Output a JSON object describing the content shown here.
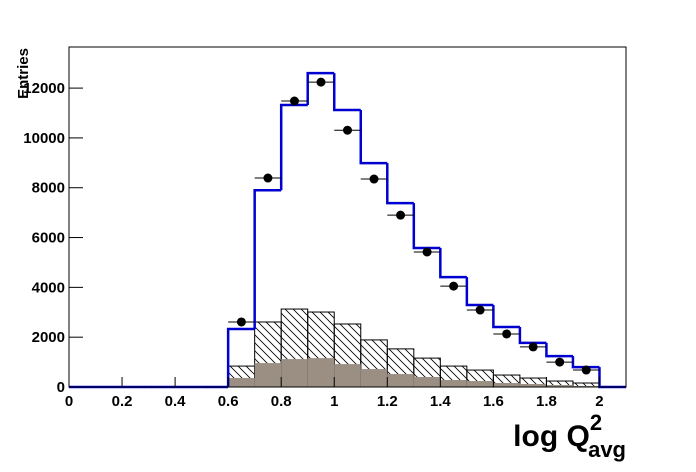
{
  "chart_data": {
    "type": "histogram",
    "x_label": {
      "main": "log Q",
      "sup": "2",
      "sub": "avg"
    },
    "y_label": "Entries",
    "bins": [
      0,
      0.1,
      0.2,
      0.3,
      0.4,
      0.5,
      0.6,
      0.7,
      0.8,
      0.9,
      1.0,
      1.1,
      1.2,
      1.3,
      1.4,
      1.5,
      1.6,
      1.7,
      1.8,
      1.9,
      2.0,
      2.1
    ],
    "series": [
      {
        "style": "hatch",
        "color": "#000000",
        "values": [
          0,
          0,
          0,
          0,
          0,
          0,
          840,
          2610,
          3130,
          3010,
          2530,
          1890,
          1530,
          1160,
          840,
          680,
          480,
          360,
          240,
          160,
          0
        ]
      },
      {
        "style": "fill",
        "color": "#9b8f84",
        "values": [
          0,
          0,
          0,
          0,
          0,
          0,
          360,
          960,
          1120,
          1160,
          920,
          720,
          520,
          400,
          280,
          240,
          160,
          120,
          80,
          40,
          0
        ]
      },
      {
        "style": "line",
        "color": "#0000d0",
        "values": [
          0,
          0,
          0,
          0,
          0,
          0,
          2330,
          7900,
          11320,
          12600,
          11120,
          8990,
          7380,
          5580,
          4410,
          3290,
          2410,
          1770,
          1240,
          800,
          0
        ]
      },
      {
        "style": "points",
        "color": "#000000",
        "values": [
          null,
          null,
          null,
          null,
          null,
          null,
          2610,
          8390,
          11480,
          12240,
          10310,
          8350,
          6900,
          5420,
          4050,
          3090,
          2130,
          1610,
          1000,
          680,
          null
        ]
      }
    ],
    "xlim": [
      0,
      2.1
    ],
    "ylim": [
      0,
      13650
    ],
    "xticks": [
      0,
      0.2,
      0.4,
      0.6,
      0.8,
      1,
      1.2,
      1.4,
      1.6,
      1.8,
      2
    ],
    "yticks": [
      0,
      2000,
      4000,
      6000,
      8000,
      10000,
      12000
    ]
  }
}
